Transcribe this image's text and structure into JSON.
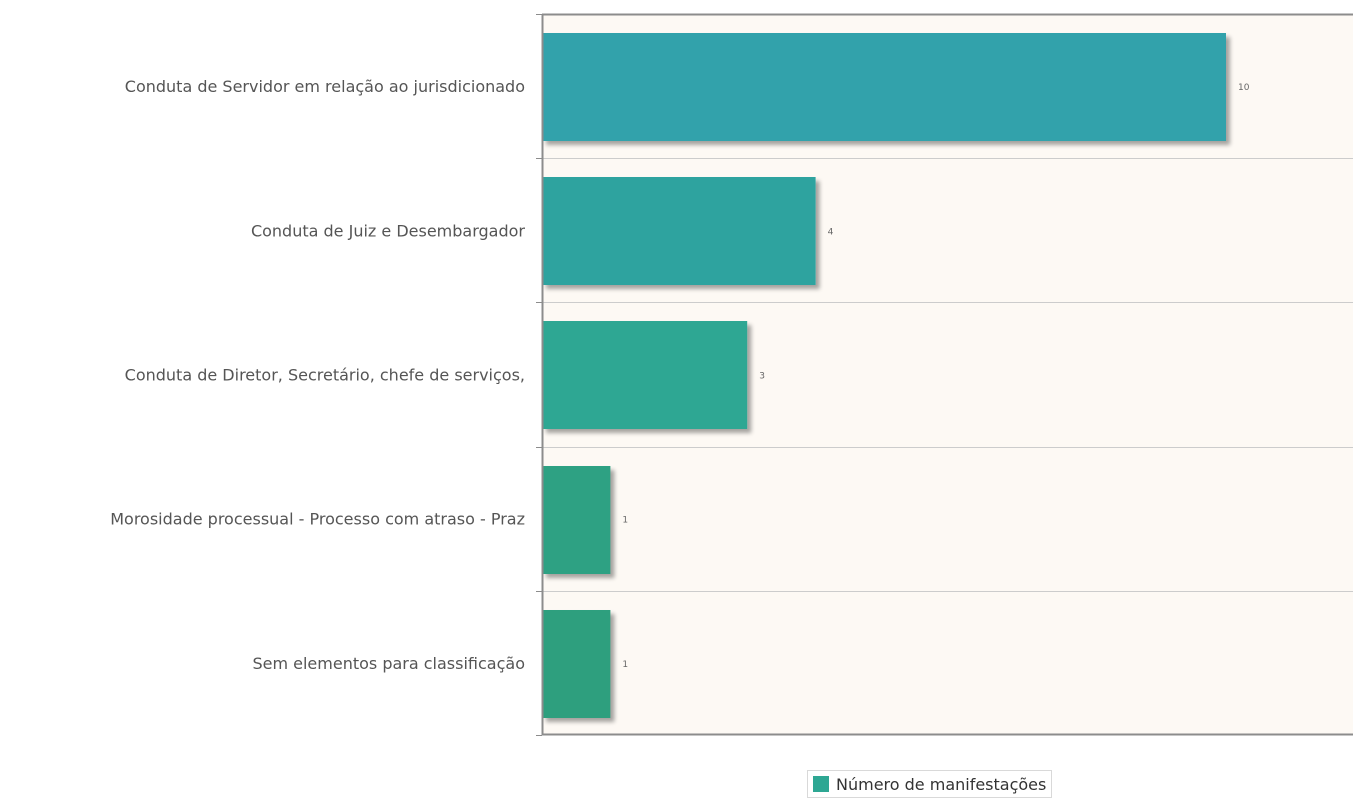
{
  "chart_data": {
    "type": "bar",
    "orientation": "horizontal",
    "categories": [
      "Conduta de Servidor em relação ao jurisdicionado",
      "Conduta de Juiz e Desembargador",
      "Conduta de Diretor, Secretário, chefe de serviços,",
      "Morosidade processual - Processo com atraso - Praz",
      "Sem elementos para classificação"
    ],
    "series": [
      {
        "name": "Número de manifestações",
        "values": [
          10,
          4,
          3,
          1,
          1
        ],
        "data_labels": [
          "10",
          "4",
          "3",
          "1",
          "1"
        ]
      }
    ],
    "bar_colors": [
      "#30a2ab",
      "#2ea39f",
      "#2ea793",
      "#2ea183",
      "#2f9f7e"
    ],
    "xlim": [
      0,
      12
    ],
    "grid": "horizontal",
    "legend_position": "bottom-center",
    "plot_background": "#fdf9f4",
    "axis_color": "#8c8c8c",
    "grid_color": "#cccccc"
  }
}
